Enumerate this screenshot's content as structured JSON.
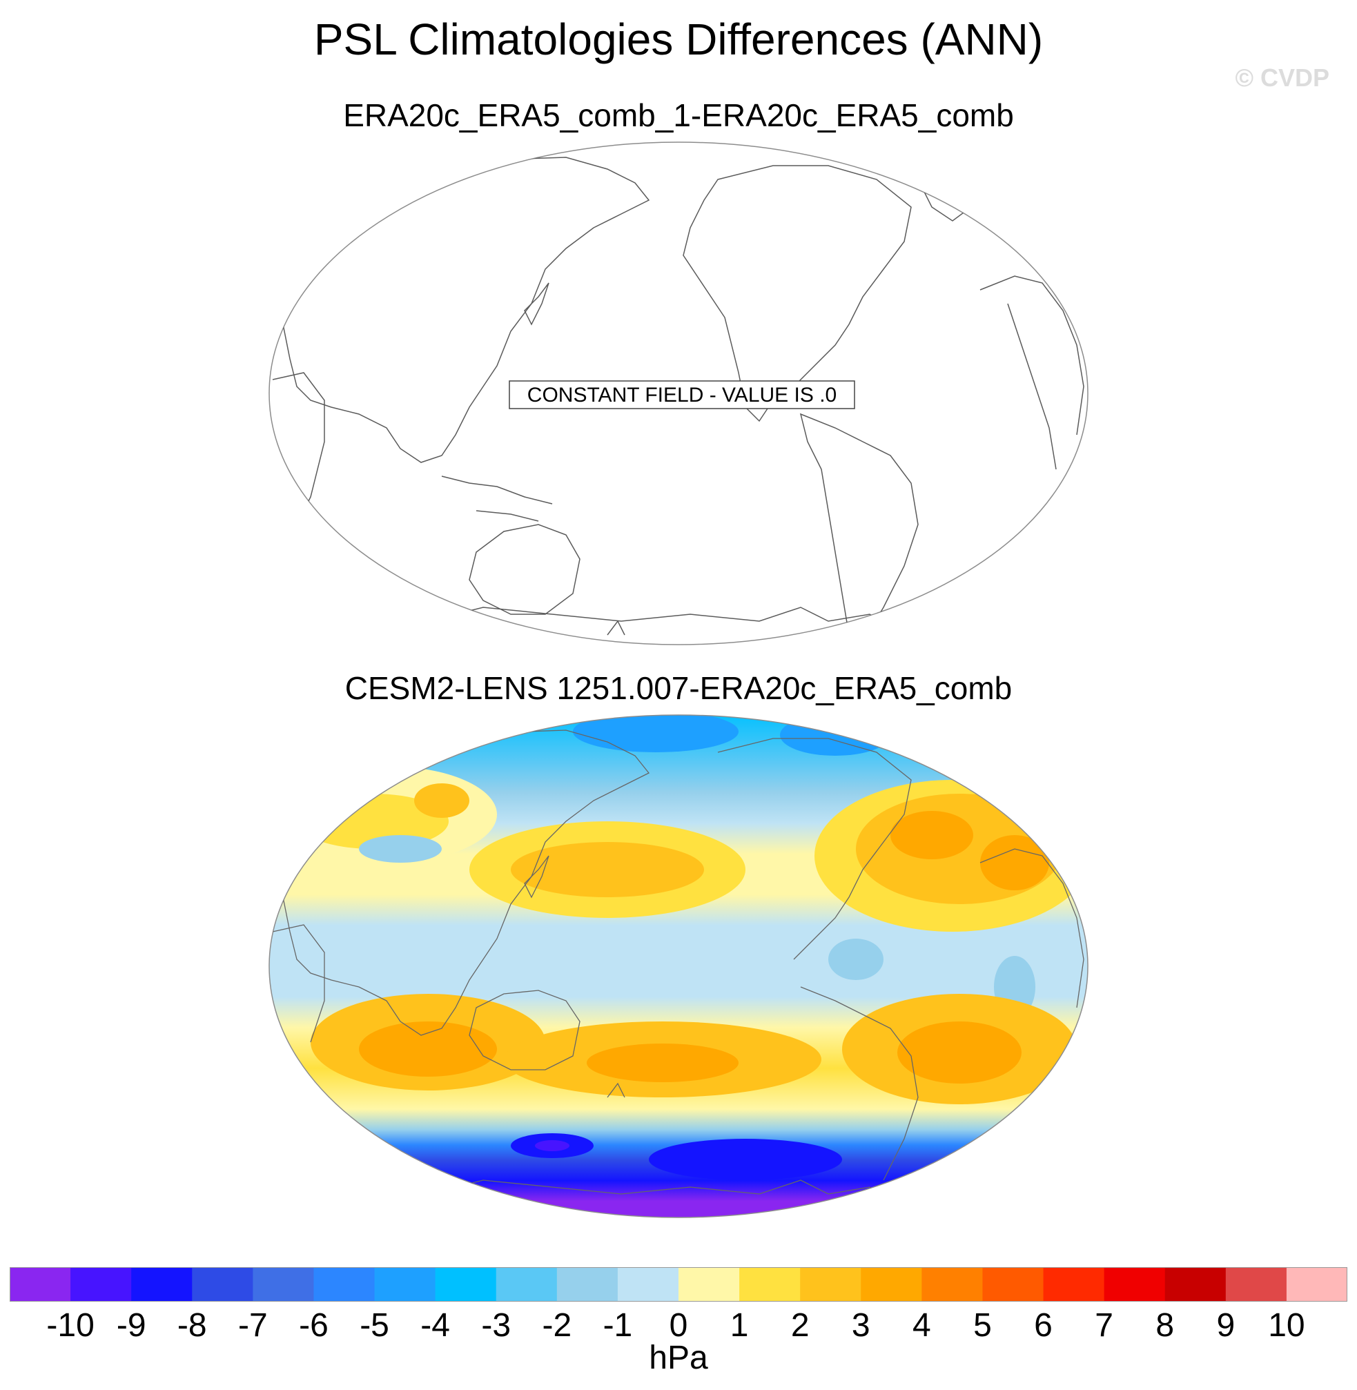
{
  "title": "PSL Climatologies Differences (ANN)",
  "watermark": "© CVDP",
  "chart_data": [
    {
      "type": "heatmap",
      "title": "ERA20c_ERA5_comb_1-ERA20c_ERA5_comb",
      "annotation": "CONSTANT FIELD - VALUE IS .0",
      "projection": "Robinson, Pacific-centered",
      "value": 0.0
    },
    {
      "type": "heatmap",
      "title": "CESM2-LENS 1251.007-ERA20c_ERA5_comb",
      "projection": "Robinson, Pacific-centered",
      "units": "hPa",
      "features": [
        {
          "region": "Antarctic coast / Southern Ocean",
          "value_range": [
            -10,
            -7
          ]
        },
        {
          "region": "Arctic",
          "value_range": [
            -5,
            -3
          ]
        },
        {
          "region": "Southern subtropics (Indian, Pacific, Atlantic highs)",
          "value_range": [
            2,
            4
          ]
        },
        {
          "region": "North Atlantic / Europe",
          "value_range": [
            2,
            4
          ]
        },
        {
          "region": "North Pacific",
          "value_range": [
            1,
            3
          ]
        },
        {
          "region": "Tropics",
          "value_range": [
            -1,
            0
          ]
        }
      ]
    }
  ],
  "colorbar": {
    "units": "hPa",
    "ticks": [
      "-10",
      "-9",
      "-8",
      "-7",
      "-6",
      "-5",
      "-4",
      "-3",
      "-2",
      "-1",
      "0",
      "1",
      "2",
      "3",
      "4",
      "5",
      "6",
      "7",
      "8",
      "9",
      "10"
    ],
    "colors": [
      "#8a26f0",
      "#4714ff",
      "#1414ff",
      "#2e4be6",
      "#3f6fe6",
      "#2c86ff",
      "#1ea0ff",
      "#00c0ff",
      "#5ac8f5",
      "#96d0ec",
      "#bfe3f5",
      "#fff7a8",
      "#ffe140",
      "#ffc21c",
      "#ffa800",
      "#ff8000",
      "#ff5a00",
      "#ff2a00",
      "#f00000",
      "#c80000",
      "#e04848",
      "#ffb8b8"
    ]
  }
}
